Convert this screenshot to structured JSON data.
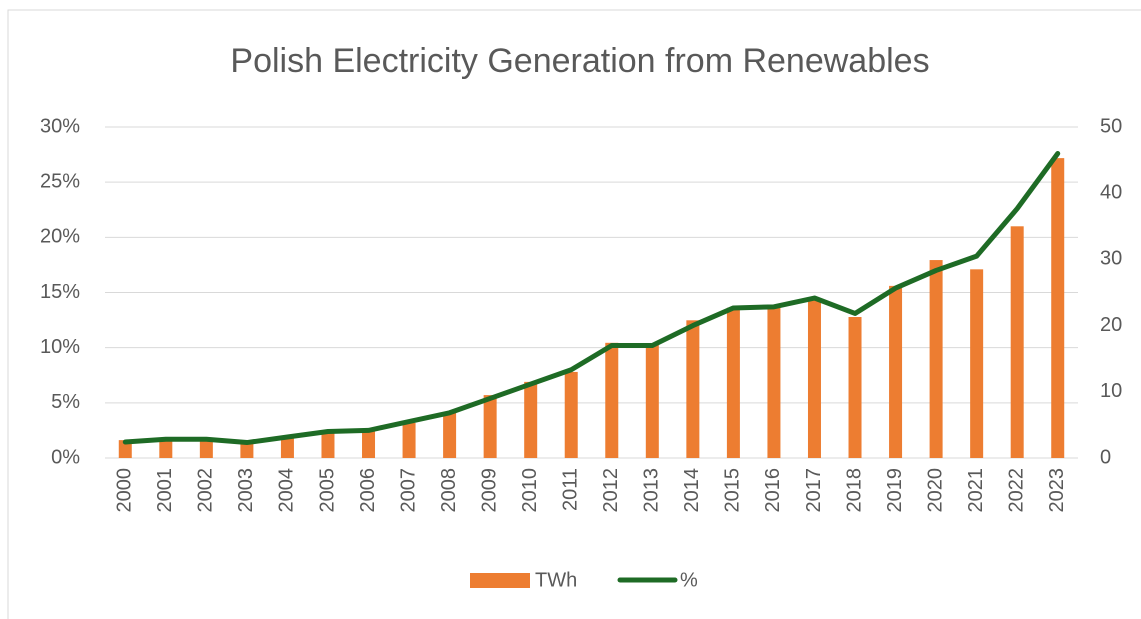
{
  "chart_data": {
    "type": "bar",
    "title": "Polish Electricity Generation from Renewables",
    "categories": [
      "2000",
      "2001",
      "2002",
      "2003",
      "2004",
      "2005",
      "2006",
      "2007",
      "2008",
      "2009",
      "2010",
      "2011",
      "2012",
      "2013",
      "2014",
      "2015",
      "2016",
      "2017",
      "2018",
      "2019",
      "2020",
      "2021",
      "2022",
      "2023"
    ],
    "series": [
      {
        "name": "TWh",
        "type": "bar",
        "axis": "y2",
        "color": "#ed7d31",
        "values": [
          2.7,
          3.0,
          3.0,
          2.3,
          3.2,
          3.9,
          4.4,
          5.3,
          6.9,
          9.5,
          11.5,
          13.0,
          17.4,
          17.2,
          20.8,
          22.7,
          22.8,
          23.9,
          21.3,
          26.0,
          29.9,
          28.5,
          35.0,
          45.3
        ]
      },
      {
        "name": "%",
        "type": "line",
        "axis": "y",
        "color": "#1e6b25",
        "values": [
          1.45,
          1.7,
          1.7,
          1.4,
          1.9,
          2.4,
          2.5,
          3.3,
          4.1,
          5.4,
          6.7,
          8.0,
          10.2,
          10.2,
          12.0,
          13.6,
          13.7,
          14.5,
          13.1,
          15.4,
          17.0,
          18.3,
          22.6,
          27.6
        ]
      }
    ],
    "ylim": [
      0,
      30
    ],
    "yticks": [
      {
        "value": 0,
        "label": "0%"
      },
      {
        "value": 5,
        "label": "5%"
      },
      {
        "value": 10,
        "label": "10%"
      },
      {
        "value": 15,
        "label": "15%"
      },
      {
        "value": 20,
        "label": "20%"
      },
      {
        "value": 25,
        "label": "25%"
      },
      {
        "value": 30,
        "label": "30%"
      }
    ],
    "y2lim": [
      0,
      50
    ],
    "y2ticks": [
      0,
      10,
      20,
      30,
      40,
      50
    ],
    "grid": true,
    "legend": "bottom"
  }
}
